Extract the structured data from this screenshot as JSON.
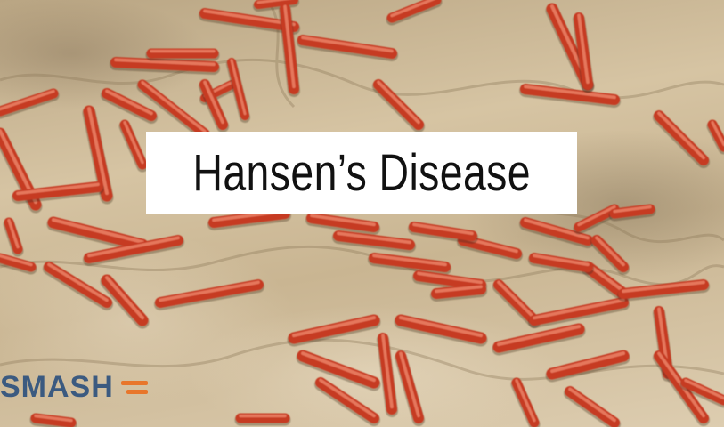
{
  "title": "Hansen’s Disease",
  "logo": {
    "text": "SMASH",
    "mark": "orange-double-bar-icon",
    "text_color": "#3b5a80",
    "mark_color": "#e8762b"
  },
  "colors": {
    "bacteria": "#c63a22",
    "background": "#cdb995"
  }
}
